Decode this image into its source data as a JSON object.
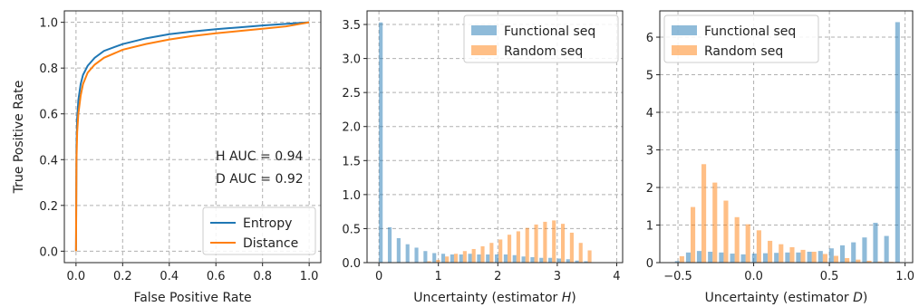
{
  "chart_data": [
    {
      "type": "line",
      "xlabel": "False Positive Rate",
      "ylabel": "True Positive Rate",
      "xlim": [
        -0.05,
        1.05
      ],
      "ylim": [
        -0.05,
        1.05
      ],
      "xticks": [
        "0.0",
        "0.2",
        "0.4",
        "0.6",
        "0.8",
        "1.0"
      ],
      "yticks": [
        "0.0",
        "0.2",
        "0.4",
        "0.6",
        "0.8",
        "1.0"
      ],
      "grid": true,
      "legend_position": "bottom-right",
      "annotations": [
        "H AUC = 0.94",
        "D AUC = 0.92"
      ],
      "series": [
        {
          "name": "Entropy",
          "color": "#1f77b4",
          "x": [
            0,
            0.002,
            0.005,
            0.01,
            0.02,
            0.03,
            0.05,
            0.08,
            0.12,
            0.2,
            0.3,
            0.4,
            0.5,
            0.6,
            0.7,
            0.8,
            0.9,
            1.0
          ],
          "y": [
            0,
            0.45,
            0.58,
            0.66,
            0.73,
            0.77,
            0.81,
            0.845,
            0.875,
            0.905,
            0.93,
            0.948,
            0.96,
            0.97,
            0.978,
            0.986,
            0.993,
            1.0
          ]
        },
        {
          "name": "Distance",
          "color": "#ff7f0e",
          "x": [
            0,
            0.002,
            0.005,
            0.01,
            0.02,
            0.03,
            0.05,
            0.08,
            0.12,
            0.2,
            0.3,
            0.4,
            0.5,
            0.6,
            0.7,
            0.8,
            0.9,
            1.0
          ],
          "y": [
            0,
            0.4,
            0.52,
            0.6,
            0.68,
            0.73,
            0.78,
            0.815,
            0.845,
            0.88,
            0.905,
            0.925,
            0.94,
            0.952,
            0.962,
            0.972,
            0.982,
            1.0
          ]
        }
      ]
    },
    {
      "type": "bar",
      "xlabel_prefix": "Uncertainty (estimator ",
      "xlabel_var": "H",
      "xlabel_suffix": ")",
      "xlim": [
        -0.2,
        4.1
      ],
      "ylim": [
        0,
        3.7
      ],
      "xticks": [
        "0",
        "1",
        "2",
        "3",
        "4"
      ],
      "yticks": [
        "0.0",
        "0.5",
        "1.0",
        "1.5",
        "2.0",
        "2.5",
        "3.0",
        "3.5"
      ],
      "grid": true,
      "legend_position": "top-right",
      "bin_width": 0.15,
      "bin_starts": [
        0.0,
        0.15,
        0.3,
        0.45,
        0.6,
        0.75,
        0.9,
        1.05,
        1.2,
        1.35,
        1.5,
        1.65,
        1.8,
        1.95,
        2.1,
        2.25,
        2.4,
        2.55,
        2.7,
        2.85,
        3.0,
        3.15,
        3.3,
        3.45
      ],
      "series": [
        {
          "name": "Functional seq",
          "color": "#1f77b4",
          "values": [
            3.53,
            0.52,
            0.36,
            0.27,
            0.22,
            0.17,
            0.14,
            0.13,
            0.12,
            0.12,
            0.13,
            0.12,
            0.12,
            0.12,
            0.12,
            0.11,
            0.09,
            0.08,
            0.07,
            0.07,
            0.06,
            0.05,
            0.03,
            0.02
          ]
        },
        {
          "name": "Random seq",
          "color": "#ff7f0e",
          "values": [
            0.0,
            0.0,
            0.0,
            0.0,
            0.0,
            0.02,
            0.04,
            0.09,
            0.13,
            0.17,
            0.2,
            0.24,
            0.29,
            0.34,
            0.41,
            0.46,
            0.51,
            0.56,
            0.6,
            0.62,
            0.57,
            0.44,
            0.29,
            0.18
          ]
        }
      ]
    },
    {
      "type": "bar",
      "xlabel_prefix": "Uncertainty (estimator ",
      "xlabel_var": "D",
      "xlabel_suffix": ")",
      "xlim": [
        -0.62,
        1.05
      ],
      "ylim": [
        0,
        6.7
      ],
      "xticks": [
        "−0.5",
        "0.0",
        "0.5",
        "1.0"
      ],
      "xtick_values": [
        -0.5,
        0.0,
        0.5,
        1.0
      ],
      "yticks": [
        "0",
        "1",
        "2",
        "3",
        "4",
        "5",
        "6"
      ],
      "grid": true,
      "legend_position": "top-left",
      "bin_width": 0.0727,
      "bin_starts": [
        -0.52,
        -0.447,
        -0.375,
        -0.302,
        -0.229,
        -0.156,
        -0.084,
        -0.011,
        0.062,
        0.135,
        0.208,
        0.28,
        0.353,
        0.426,
        0.498,
        0.571,
        0.644,
        0.717,
        0.789,
        0.862,
        0.935
      ],
      "series": [
        {
          "name": "Functional seq",
          "color": "#1f77b4",
          "values": [
            0.04,
            0.27,
            0.31,
            0.29,
            0.27,
            0.24,
            0.22,
            0.24,
            0.25,
            0.26,
            0.27,
            0.27,
            0.29,
            0.31,
            0.38,
            0.46,
            0.54,
            0.67,
            1.06,
            0.71,
            6.4
          ]
        },
        {
          "name": "Random seq",
          "color": "#ff7f0e",
          "values": [
            0.17,
            1.48,
            2.62,
            2.13,
            1.65,
            1.21,
            1.02,
            0.86,
            0.58,
            0.49,
            0.41,
            0.34,
            0.29,
            0.23,
            0.18,
            0.12,
            0.08,
            0.05,
            0.03,
            0.02,
            0.0
          ]
        }
      ]
    }
  ]
}
